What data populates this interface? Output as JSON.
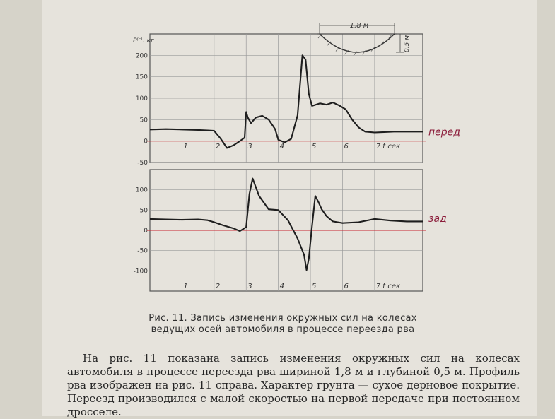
{
  "chart_data": [
    {
      "type": "line",
      "title": "",
      "ylabel": "P⁽ᶜ⁾₁ кг",
      "xlabel": "t сек",
      "ylim": [
        -50,
        250
      ],
      "xlim": [
        0,
        8.5
      ],
      "yticks": [
        "200",
        "150",
        "100",
        "50",
        "0",
        "-50"
      ],
      "xticks": [
        "1",
        "2",
        "3",
        "4",
        "5",
        "6",
        "7"
      ],
      "reference_line": 0,
      "annotation": "перед",
      "inset": {
        "width_label": "1,8 м",
        "depth_label": "0,5 м"
      },
      "series": [
        {
          "x": [
            0,
            0.5,
            1,
            1.5,
            1.8,
            2.0,
            2.2,
            2.4,
            2.6,
            2.8,
            2.95,
            3.0,
            3.05,
            3.15,
            3.3,
            3.5,
            3.7,
            3.9,
            4.0,
            4.2,
            4.4,
            4.6,
            4.75,
            4.85,
            4.95,
            5.05,
            5.3,
            5.5,
            5.7,
            5.9,
            6.1,
            6.3,
            6.5,
            6.7,
            7.0,
            7.3,
            7.6,
            8.0,
            8.5
          ],
          "y": [
            27,
            28,
            27,
            26,
            25,
            24,
            6,
            -16,
            -10,
            0,
            8,
            68,
            55,
            42,
            55,
            59,
            50,
            28,
            3,
            -3,
            5,
            60,
            200,
            190,
            110,
            82,
            88,
            85,
            90,
            83,
            74,
            50,
            32,
            22,
            20,
            21,
            22,
            22,
            22
          ]
        }
      ]
    },
    {
      "type": "line",
      "title": "",
      "ylabel": "",
      "xlabel": "t сек",
      "ylim": [
        -150,
        150
      ],
      "xlim": [
        0,
        8.5
      ],
      "yticks": [
        "100",
        "50",
        "0",
        "-50",
        "-100"
      ],
      "xticks": [
        "1",
        "2",
        "3",
        "4",
        "5",
        "6",
        "7"
      ],
      "reference_line": 0,
      "annotation": "зад",
      "series": [
        {
          "x": [
            0,
            0.5,
            1,
            1.5,
            1.8,
            2.0,
            2.3,
            2.6,
            2.8,
            3.0,
            3.1,
            3.2,
            3.4,
            3.7,
            4.0,
            4.3,
            4.6,
            4.8,
            4.88,
            4.95,
            5.05,
            5.15,
            5.25,
            5.35,
            5.5,
            5.7,
            6.0,
            6.5,
            7.0,
            7.5,
            8.0,
            8.5
          ],
          "y": [
            28,
            27,
            26,
            27,
            25,
            20,
            12,
            5,
            -2,
            8,
            90,
            128,
            85,
            52,
            50,
            25,
            -20,
            -60,
            -98,
            -70,
            10,
            85,
            70,
            52,
            35,
            22,
            18,
            20,
            28,
            24,
            22,
            22
          ]
        }
      ]
    }
  ],
  "caption": {
    "line1": "Рис. 11. Запись изменения окружных сил на колесах",
    "line2": "ведущих осей автомобиля в процессе переезда рва"
  },
  "body_text": "На рис. 11 показана запись изменения окружных сил на колесах автомобиля в процессе переезда рва шириной 1,8 м и глубиной 0,5 м. Профиль рва изображен на рис. 11 справа. Характер грунта — сухое дерновое покрытие. Переезд производился с малой скоростью на первой передаче при постоянном дросселе."
}
